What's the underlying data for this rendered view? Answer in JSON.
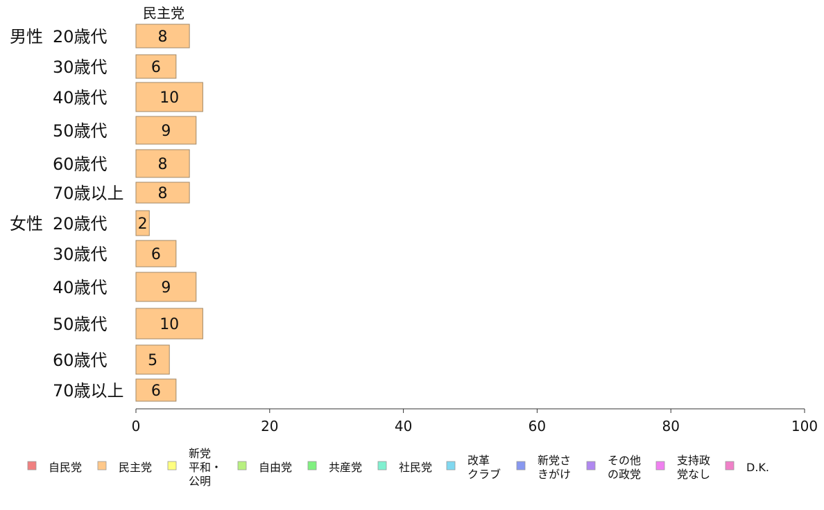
{
  "chart_data": {
    "type": "bar",
    "orientation": "horizontal",
    "series_header": "民主党",
    "groups": [
      {
        "label": "男性",
        "categories": [
          "20歳代",
          "30歳代",
          "40歳代",
          "50歳代",
          "60歳代",
          "70歳以上"
        ],
        "values": [
          8,
          6,
          10,
          9,
          8,
          8
        ]
      },
      {
        "label": "女性",
        "categories": [
          "20歳代",
          "30歳代",
          "40歳代",
          "50歳代",
          "60歳代",
          "70歳以上"
        ],
        "values": [
          2,
          6,
          9,
          10,
          5,
          6
        ]
      }
    ],
    "xlim": [
      0,
      100
    ],
    "xticks": [
      0,
      20,
      40,
      60,
      80,
      100
    ],
    "grid": false,
    "legend_position": "bottom",
    "legend": [
      {
        "lines": [
          "自民党"
        ],
        "color": "#f08080"
      },
      {
        "lines": [
          "民主党"
        ],
        "color": "#ffc88a"
      },
      {
        "lines": [
          "新党",
          "平和・",
          "公明"
        ],
        "color": "#ffff80"
      },
      {
        "lines": [
          "自由党"
        ],
        "color": "#b8f080"
      },
      {
        "lines": [
          "共産党"
        ],
        "color": "#80f080"
      },
      {
        "lines": [
          "社民党"
        ],
        "color": "#80f0d0"
      },
      {
        "lines": [
          "改革",
          "クラブ"
        ],
        "color": "#80d8f0"
      },
      {
        "lines": [
          "新党さ",
          "きがけ"
        ],
        "color": "#8898f0"
      },
      {
        "lines": [
          "その他",
          "の政党"
        ],
        "color": "#b088f0"
      },
      {
        "lines": [
          "支持政",
          "党なし"
        ],
        "color": "#f080f0"
      },
      {
        "lines": [
          "D.K."
        ],
        "color": "#f080c8"
      }
    ],
    "bar_color": "#ffc88a",
    "bar_stroke": "#a08868"
  }
}
